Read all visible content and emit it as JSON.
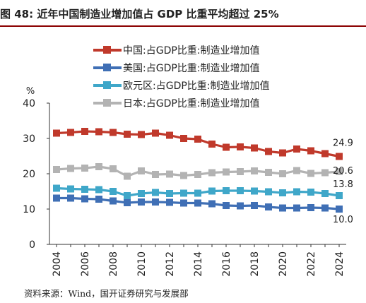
{
  "title": "图 48: 近年中国制造业增加值占 GDP 比重平均超过 25%",
  "source": "资料来源：Wind，国开证券研究与发展部",
  "chart_data": {
    "type": "line",
    "ylabel": "%",
    "ylim": [
      0,
      40
    ],
    "yticks": [
      0,
      10,
      20,
      30,
      40
    ],
    "x": [
      2004,
      2005,
      2006,
      2007,
      2008,
      2009,
      2010,
      2011,
      2012,
      2013,
      2014,
      2015,
      2016,
      2017,
      2018,
      2019,
      2020,
      2021,
      2022,
      2023,
      2024
    ],
    "xticks": [
      2004,
      2006,
      2008,
      2010,
      2012,
      2014,
      2016,
      2018,
      2020,
      2022,
      2024
    ],
    "grid": false,
    "legend": "top-left",
    "series": [
      {
        "name": "中国:占GDP比重:制造业增加值",
        "color": "#c0392b",
        "values": [
          31.5,
          31.7,
          32.0,
          31.9,
          31.7,
          31.2,
          31.1,
          31.5,
          30.9,
          30.0,
          29.8,
          28.4,
          27.5,
          27.6,
          27.3,
          26.3,
          25.9,
          27.0,
          26.5,
          25.7,
          24.9
        ],
        "end_label": "24.9"
      },
      {
        "name": "美国:占GDP比重:制造业增加值",
        "color": "#3f6fb5",
        "values": [
          13.1,
          13.1,
          12.9,
          12.8,
          12.3,
          11.8,
          12.0,
          12.0,
          11.9,
          11.7,
          11.7,
          11.5,
          11.0,
          10.9,
          11.0,
          10.6,
          10.3,
          10.3,
          10.4,
          10.3,
          10.0
        ],
        "end_label": "10.0"
      },
      {
        "name": "欧元区:占GDP比重:制造业增加值",
        "color": "#3fa7c9",
        "values": [
          15.9,
          15.7,
          15.6,
          15.5,
          15.0,
          13.8,
          14.4,
          14.7,
          14.4,
          14.5,
          14.5,
          15.1,
          15.2,
          15.2,
          15.1,
          14.9,
          14.6,
          14.9,
          14.8,
          14.4,
          13.8
        ],
        "end_label": "13.8"
      },
      {
        "name": "日本:占GDP比重:制造业增加值",
        "color": "#b3b3b3",
        "values": [
          21.2,
          21.5,
          21.6,
          22.0,
          21.4,
          19.3,
          20.8,
          19.8,
          19.9,
          19.5,
          19.8,
          20.3,
          20.5,
          20.6,
          20.8,
          20.4,
          20.0,
          20.9,
          20.1,
          20.3,
          20.6
        ],
        "end_label": "20.6"
      }
    ]
  }
}
